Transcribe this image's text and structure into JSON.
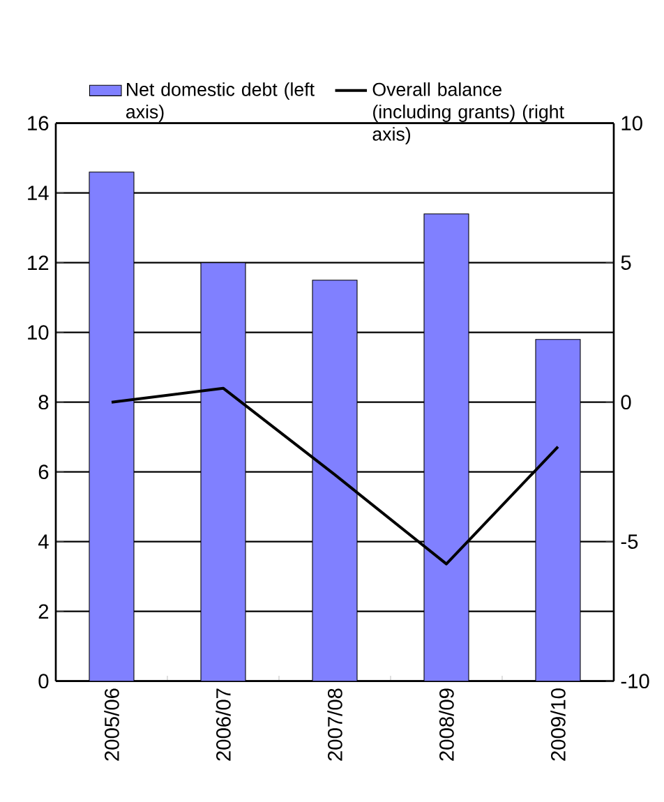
{
  "chart_data": {
    "type": "bar",
    "categories": [
      "2005/06",
      "2006/07",
      "2007/08",
      "2008/09",
      "2009/10"
    ],
    "series": [
      {
        "name": "Net domestic debt (left axis)",
        "color": "#8080ff",
        "values": [
          14.6,
          12,
          11.5,
          13.4,
          9.8
        ]
      },
      {
        "name": "Overall balance (including grants) (right axis)",
        "type": "line",
        "axis": "y2",
        "color": "#000000",
        "values": [
          0,
          0.5,
          -2.6,
          -5.8,
          -1.6
        ]
      }
    ],
    "ylim": [
      0,
      16
    ],
    "yticks": [
      0,
      2,
      4,
      6,
      8,
      10,
      12,
      14,
      16
    ],
    "y2lim": [
      -10,
      10
    ],
    "y2ticks": [
      -10,
      -5,
      0,
      5,
      10
    ],
    "grid": "y",
    "legend": "top",
    "marker": "none",
    "line_style": "solid"
  }
}
